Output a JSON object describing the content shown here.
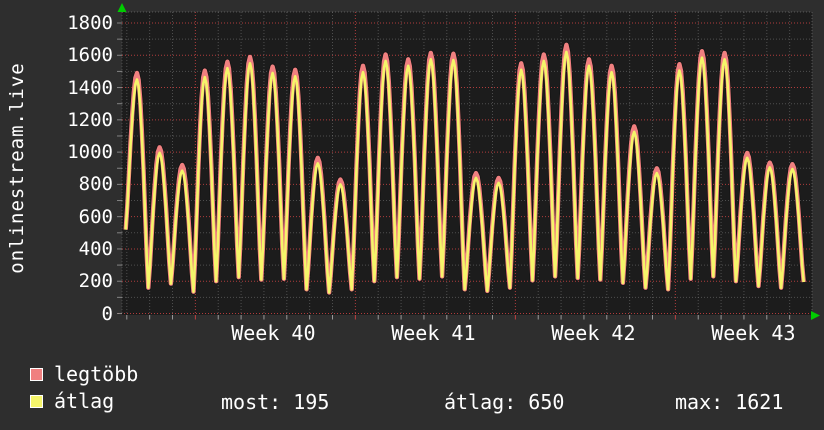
{
  "title": "onlinestream.live",
  "colors": {
    "background": "#2e2e2e",
    "plot_background": "#1c1c1c",
    "major_grid": "#c04040",
    "minor_grid": "#8c8c8c",
    "axis_arrow": "#00cc00",
    "text": "#ffffff",
    "series_legtobb": "#f08080",
    "series_atlag": "#f5f56a"
  },
  "chart_data": {
    "type": "line",
    "title": "onlinestream.live",
    "x_axis": {
      "labels": [
        "Week 40",
        "Week 41",
        "Week 42",
        "Week 43"
      ],
      "days_shown": 30,
      "grid": "minor line per day, major red line per week"
    },
    "y_axis": {
      "min": 0,
      "max": 1800,
      "major_step": 200,
      "minor_step": 100,
      "tick_labels": [
        "1800",
        "1600",
        "1400",
        "1200",
        "1000",
        "800",
        "600",
        "400",
        "200",
        "0"
      ]
    },
    "series": [
      {
        "name": "legtöbb",
        "color": "#f08080",
        "daily_peaks": [
          1490,
          1030,
          920,
          1505,
          1560,
          1590,
          1530,
          1510,
          965,
          830,
          1535,
          1605,
          1575,
          1615,
          1610,
          870,
          840,
          1550,
          1605,
          1665,
          1575,
          1535,
          1160,
          900,
          1545,
          1625,
          1615,
          995,
          935,
          925
        ]
      },
      {
        "name": "átlag",
        "color": "#f5f56a",
        "daily_peaks": [
          1450,
          995,
          885,
          1465,
          1520,
          1550,
          1490,
          1470,
          930,
          800,
          1495,
          1565,
          1535,
          1575,
          1570,
          840,
          810,
          1510,
          1565,
          1621,
          1535,
          1495,
          1125,
          870,
          1505,
          1585,
          1575,
          965,
          905,
          895
        ]
      }
    ],
    "daily_troughs": [
      520,
      160,
      185,
      135,
      200,
      225,
      210,
      215,
      150,
      130,
      150,
      200,
      225,
      215,
      230,
      150,
      140,
      160,
      205,
      230,
      220,
      210,
      190,
      160,
      150,
      215,
      230,
      200,
      170,
      160,
      195
    ],
    "stats": [
      {
        "label": "most",
        "value": "195"
      },
      {
        "label": "átlag",
        "value": "650"
      },
      {
        "label": "max",
        "value": "1621"
      }
    ],
    "legend_position": "bottom-left",
    "grid_on": true
  }
}
